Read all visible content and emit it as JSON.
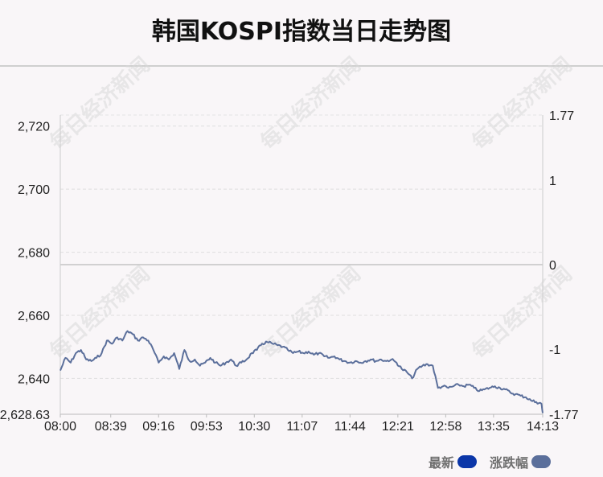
{
  "title": "韩国KOSPI指数当日走势图",
  "legend": [
    {
      "label": "最新",
      "color": "#0b36a8"
    },
    {
      "label": "涨跌幅",
      "color": "#5b6f9b"
    }
  ],
  "watermark": "每日经济新闻",
  "chart_data": {
    "type": "line",
    "title": "韩国KOSPI指数当日走势图",
    "x_ticks": [
      "08:00",
      "08:39",
      "09:16",
      "09:53",
      "10:30",
      "11:07",
      "11:44",
      "12:21",
      "12:58",
      "13:35",
      "14:13"
    ],
    "y_left_ticks": [
      "2,720",
      "2,700",
      "2,680",
      "2,660",
      "2,640",
      "2,628.63"
    ],
    "y_right_ticks": [
      "1.77",
      "1",
      "0",
      "-1",
      "-1.77"
    ],
    "ylim_left": [
      2628.63,
      2723.5
    ],
    "ylim_right": [
      -1.77,
      1.77
    ],
    "prev_close": 2676.1,
    "grid": true,
    "line_color": "#5b6f9b",
    "series": [
      {
        "x": [
          "08:00",
          "08:04",
          "08:08",
          "08:12",
          "08:16",
          "08:20",
          "08:24",
          "08:28",
          "08:32",
          "08:36",
          "08:40",
          "08:44",
          "08:48",
          "08:52",
          "08:56",
          "09:00",
          "09:04",
          "09:08",
          "09:12",
          "09:16",
          "09:20",
          "09:24",
          "09:28",
          "09:32",
          "09:36",
          "09:40",
          "09:44",
          "09:48",
          "09:52",
          "09:56",
          "10:00",
          "10:04",
          "10:08",
          "10:12",
          "10:16",
          "10:20",
          "10:24",
          "10:28",
          "10:32",
          "10:36",
          "10:40",
          "10:44",
          "10:48",
          "10:52",
          "10:56",
          "11:00",
          "11:04",
          "11:08",
          "11:12",
          "11:16",
          "11:20",
          "11:24",
          "11:28",
          "11:32",
          "11:36",
          "11:40",
          "11:44",
          "11:48",
          "11:52",
          "11:56",
          "12:00",
          "12:04",
          "12:08",
          "12:12",
          "12:16",
          "12:20",
          "12:24",
          "12:28",
          "12:32",
          "12:36",
          "12:40",
          "12:44",
          "12:48",
          "12:52",
          "12:56",
          "13:00",
          "13:04",
          "13:08",
          "13:12",
          "13:16",
          "13:20",
          "13:24",
          "13:28",
          "13:32",
          "13:36",
          "13:40",
          "13:44",
          "13:48",
          "13:52",
          "13:56",
          "14:00",
          "14:04",
          "14:08",
          "14:12",
          "14:13"
        ],
        "values": [
          2642.5,
          2646.5,
          2645,
          2648,
          2649,
          2646,
          2645.5,
          2646.5,
          2648,
          2652,
          2651,
          2653,
          2652,
          2655,
          2654,
          2652,
          2653,
          2652,
          2649,
          2645,
          2647,
          2646,
          2648,
          2643,
          2649,
          2645.5,
          2646,
          2644,
          2645,
          2646.5,
          2645,
          2644,
          2645,
          2646,
          2644,
          2645,
          2646,
          2648,
          2649,
          2651,
          2651.5,
          2651,
          2650.5,
          2650,
          2649,
          2648,
          2648.5,
          2648,
          2648.5,
          2647.5,
          2648,
          2647,
          2646.5,
          2647,
          2646,
          2645.5,
          2645,
          2645.5,
          2645,
          2645.5,
          2646,
          2645.5,
          2646,
          2645.5,
          2646,
          2645,
          2643,
          2642,
          2640,
          2643,
          2644,
          2644.5,
          2644,
          2637,
          2637.5,
          2637,
          2637.5,
          2638,
          2637.5,
          2638,
          2637,
          2636,
          2636.5,
          2637,
          2637.5,
          2637,
          2636.5,
          2635.5,
          2635,
          2634.5,
          2634,
          2633,
          2632.5,
          2632,
          2629
        ]
      }
    ]
  }
}
